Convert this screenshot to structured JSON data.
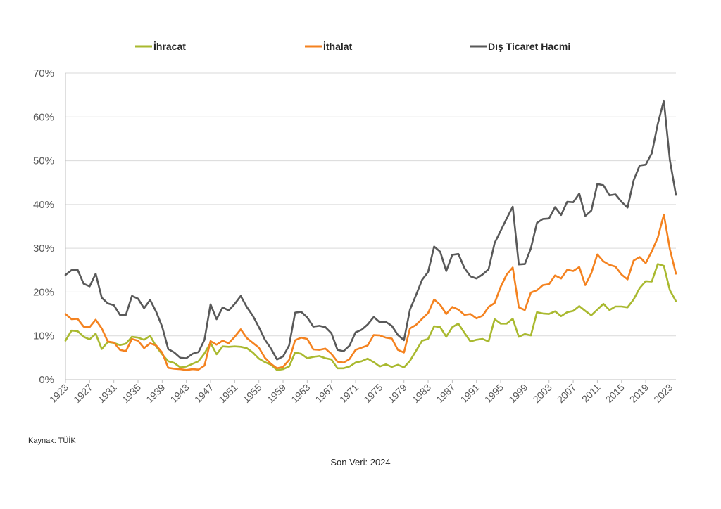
{
  "chart_data": {
    "type": "line",
    "title": "",
    "xlabel": "",
    "ylabel": "",
    "ylim": [
      0,
      70
    ],
    "yticks": [
      "0%",
      "10%",
      "20%",
      "30%",
      "40%",
      "50%",
      "60%",
      "70%"
    ],
    "x": [
      1923,
      1924,
      1925,
      1926,
      1927,
      1928,
      1929,
      1930,
      1931,
      1932,
      1933,
      1934,
      1935,
      1936,
      1937,
      1938,
      1939,
      1940,
      1941,
      1942,
      1943,
      1944,
      1945,
      1946,
      1947,
      1948,
      1949,
      1950,
      1951,
      1952,
      1953,
      1954,
      1955,
      1956,
      1957,
      1958,
      1959,
      1960,
      1961,
      1962,
      1963,
      1964,
      1965,
      1966,
      1967,
      1968,
      1969,
      1970,
      1971,
      1972,
      1973,
      1974,
      1975,
      1976,
      1977,
      1978,
      1979,
      1980,
      1981,
      1982,
      1983,
      1984,
      1985,
      1986,
      1987,
      1988,
      1989,
      1990,
      1991,
      1992,
      1993,
      1994,
      1995,
      1996,
      1997,
      1998,
      1999,
      2000,
      2001,
      2002,
      2003,
      2004,
      2005,
      2006,
      2007,
      2008,
      2009,
      2010,
      2011,
      2012,
      2013,
      2014,
      2015,
      2016,
      2017,
      2018,
      2019,
      2020,
      2021,
      2022,
      2023,
      2024
    ],
    "xticks": [
      "1923",
      "1927",
      "1931",
      "1935",
      "1939",
      "1943",
      "1947",
      "1951",
      "1955",
      "1959",
      "1963",
      "1967",
      "1971",
      "1975",
      "1979",
      "1983",
      "1987",
      "1991",
      "1995",
      "1999",
      "2003",
      "2007",
      "2011",
      "2015",
      "2019",
      "2023"
    ],
    "legend_position": "top",
    "series": [
      {
        "name": "İhracat",
        "color": "#a9b92f",
        "values": [
          8.9,
          11.2,
          11.1,
          9.8,
          9.2,
          10.5,
          7.0,
          8.6,
          8.4,
          7.9,
          8.2,
          9.8,
          9.6,
          9.1,
          10.0,
          7.6,
          5.8,
          4.2,
          3.8,
          2.8,
          3.0,
          3.6,
          4.2,
          6.0,
          8.4,
          5.8,
          7.6,
          7.5,
          7.6,
          7.5,
          7.2,
          6.2,
          4.8,
          4.0,
          3.4,
          2.2,
          2.4,
          3.0,
          6.2,
          5.9,
          4.9,
          5.2,
          5.4,
          4.9,
          4.6,
          2.6,
          2.6,
          3.0,
          3.9,
          4.2,
          4.8,
          4.0,
          3.0,
          3.5,
          2.9,
          3.4,
          2.8,
          4.3,
          6.6,
          8.9,
          9.3,
          12.2,
          12.0,
          9.8,
          12.0,
          12.8,
          10.7,
          8.7,
          9.1,
          9.3,
          8.7,
          13.8,
          12.8,
          12.8,
          13.9,
          9.8,
          10.4,
          10.1,
          15.4,
          15.1,
          15.0,
          15.6,
          14.5,
          15.4,
          15.7,
          16.8,
          15.7,
          14.7,
          16.0,
          17.3,
          15.9,
          16.7,
          16.7,
          16.5,
          18.3,
          20.9,
          22.5,
          22.4,
          26.4,
          26.0,
          20.4,
          17.9
        ]
      },
      {
        "name": "İthalat",
        "color": "#f4821f",
        "values": [
          15.0,
          13.8,
          13.9,
          12.1,
          12.0,
          13.7,
          11.7,
          8.7,
          8.5,
          6.8,
          6.5,
          9.3,
          8.9,
          7.2,
          8.3,
          7.8,
          6.2,
          2.7,
          2.5,
          2.4,
          2.2,
          2.4,
          2.3,
          3.2,
          8.8,
          8.0,
          8.9,
          8.3,
          9.8,
          11.5,
          9.5,
          8.4,
          7.3,
          5.0,
          3.6,
          2.6,
          2.9,
          4.5,
          9.0,
          9.6,
          9.3,
          6.9,
          6.8,
          7.1,
          5.9,
          4.1,
          3.9,
          4.7,
          6.8,
          7.3,
          7.8,
          10.2,
          10.1,
          9.6,
          9.4,
          6.8,
          6.2,
          11.7,
          12.5,
          13.9,
          15.2,
          18.3,
          17.1,
          15.0,
          16.6,
          16.0,
          14.8,
          15.0,
          14.0,
          14.6,
          16.6,
          17.5,
          21.2,
          24.0,
          25.6,
          16.5,
          15.9,
          19.9,
          20.4,
          21.6,
          21.8,
          23.8,
          23.1,
          25.1,
          24.8,
          25.7,
          21.6,
          24.3,
          28.6,
          27.0,
          26.2,
          25.8,
          24.0,
          22.9,
          27.2,
          28.0,
          26.6,
          29.3,
          32.4,
          37.7,
          29.8,
          24.2
        ]
      },
      {
        "name": "Dış Ticaret Hacmi",
        "color": "#595959",
        "values": [
          23.9,
          25.0,
          25.1,
          21.9,
          21.3,
          24.2,
          18.7,
          17.4,
          17.0,
          14.8,
          14.8,
          19.1,
          18.5,
          16.3,
          18.2,
          15.5,
          12.1,
          7.0,
          6.2,
          5.0,
          4.9,
          5.9,
          6.3,
          9.1,
          17.2,
          13.8,
          16.5,
          15.8,
          17.3,
          19.1,
          16.6,
          14.6,
          12.0,
          9.1,
          7.1,
          4.6,
          5.3,
          7.8,
          15.3,
          15.5,
          14.2,
          12.1,
          12.3,
          12.0,
          10.6,
          6.8,
          6.5,
          7.8,
          10.8,
          11.4,
          12.6,
          14.3,
          13.1,
          13.2,
          12.3,
          10.2,
          9.0,
          16.0,
          19.3,
          22.8,
          24.6,
          30.4,
          29.2,
          24.8,
          28.5,
          28.7,
          25.5,
          23.6,
          23.1,
          24.0,
          25.2,
          31.2,
          34.0,
          36.8,
          39.5,
          26.3,
          26.4,
          30.0,
          35.8,
          36.7,
          36.8,
          39.4,
          37.6,
          40.6,
          40.5,
          42.5,
          37.4,
          38.6,
          44.7,
          44.4,
          42.1,
          42.3,
          40.6,
          39.3,
          45.5,
          48.9,
          49.1,
          51.7,
          58.4,
          63.7,
          50.1,
          42.2
        ]
      }
    ]
  },
  "source_label": "Kaynak: TÜİK",
  "footnote": "Son Veri: 2024"
}
